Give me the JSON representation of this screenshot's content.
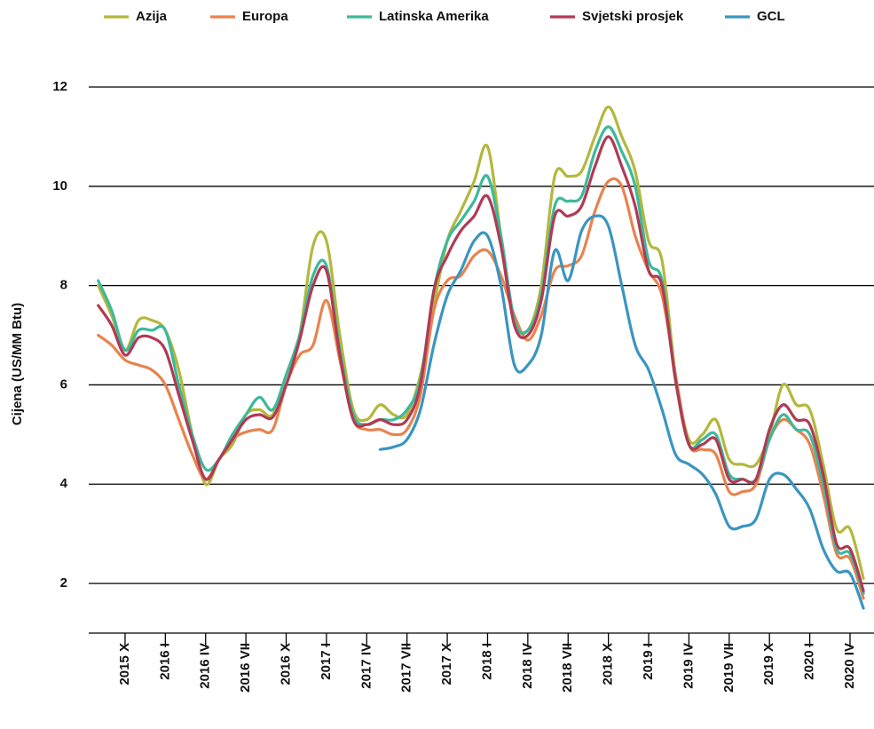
{
  "chart_data": {
    "type": "line",
    "y_label": "Cijena (US/MM Btu)",
    "categories": [
      null,
      null,
      "2015 X",
      null,
      null,
      "2016 I",
      null,
      null,
      "2016 IV",
      null,
      null,
      "2016 VII",
      null,
      null,
      "2016 X",
      null,
      null,
      "2017 I",
      null,
      null,
      "2017 IV",
      null,
      null,
      "2017 VII",
      null,
      null,
      "2017 X",
      null,
      null,
      "2018 I",
      null,
      null,
      "2018 IV",
      null,
      null,
      "2018 VII",
      null,
      null,
      "2018 X",
      null,
      null,
      "2019 I",
      null,
      null,
      "2019 IV",
      null,
      null,
      "2019 VII",
      null,
      null,
      "2019 X",
      null,
      null,
      "2020 I",
      null,
      null,
      "2020 IV",
      null
    ],
    "ylim": [
      1,
      12
    ],
    "yticks": [
      2,
      4,
      6,
      8,
      10,
      12
    ],
    "grid": true,
    "series": [
      {
        "name": "Azija",
        "color": "#b3b83c",
        "values": [
          8.0,
          7.4,
          6.7,
          7.3,
          7.3,
          7.1,
          6.3,
          5.0,
          4.0,
          4.5,
          4.8,
          5.4,
          5.5,
          5.4,
          6.2,
          7.0,
          8.8,
          8.9,
          7.0,
          5.5,
          5.3,
          5.6,
          5.4,
          5.4,
          6.2,
          7.6,
          8.9,
          9.5,
          10.1,
          10.8,
          9.0,
          7.3,
          7.1,
          8.0,
          10.2,
          10.2,
          10.3,
          11.0,
          11.6,
          11.0,
          10.3,
          8.9,
          8.5,
          6.2,
          4.9,
          5.0,
          5.3,
          4.5,
          4.4,
          4.4,
          5.0,
          6.0,
          5.6,
          5.5,
          4.4,
          3.1,
          3.1,
          2.1
        ]
      },
      {
        "name": "Europa",
        "color": "#e8834e",
        "values": [
          7.0,
          6.8,
          6.5,
          6.4,
          6.3,
          6.0,
          5.3,
          4.6,
          4.1,
          4.5,
          4.9,
          5.05,
          5.1,
          5.1,
          6.0,
          6.6,
          6.8,
          7.7,
          6.5,
          5.3,
          5.1,
          5.1,
          5.0,
          5.1,
          5.8,
          7.5,
          8.1,
          8.2,
          8.6,
          8.7,
          8.2,
          7.4,
          6.9,
          7.4,
          8.3,
          8.4,
          8.6,
          9.5,
          10.1,
          10.0,
          9.0,
          8.3,
          7.8,
          6.2,
          4.8,
          4.7,
          4.6,
          3.85,
          3.85,
          4.0,
          4.9,
          5.3,
          5.1,
          4.8,
          3.8,
          2.6,
          2.5,
          1.7
        ]
      },
      {
        "name": "Latinska Amerika",
        "color": "#3cb99b",
        "values": [
          8.1,
          7.5,
          6.7,
          7.1,
          7.1,
          7.1,
          6.0,
          5.0,
          4.3,
          4.5,
          5.0,
          5.4,
          5.75,
          5.5,
          6.2,
          7.0,
          8.2,
          8.4,
          6.7,
          5.4,
          5.2,
          5.3,
          5.3,
          5.5,
          6.1,
          7.9,
          8.9,
          9.3,
          9.7,
          10.2,
          9.0,
          7.3,
          7.1,
          7.8,
          9.6,
          9.7,
          9.8,
          10.7,
          11.2,
          10.7,
          10.0,
          8.5,
          8.1,
          6.1,
          4.8,
          4.9,
          5.0,
          4.2,
          4.1,
          4.1,
          4.9,
          5.4,
          5.1,
          5.0,
          4.0,
          2.7,
          2.6,
          1.8
        ]
      },
      {
        "name": "Svjetski prosjek",
        "color": "#b03a55",
        "values": [
          7.6,
          7.2,
          6.6,
          6.95,
          6.95,
          6.7,
          5.8,
          4.9,
          4.1,
          4.5,
          4.9,
          5.3,
          5.4,
          5.35,
          6.0,
          6.9,
          8.0,
          8.3,
          6.6,
          5.3,
          5.2,
          5.3,
          5.2,
          5.3,
          6.0,
          7.9,
          8.6,
          9.1,
          9.4,
          9.8,
          8.8,
          7.2,
          7.0,
          7.7,
          9.4,
          9.4,
          9.6,
          10.4,
          11.0,
          10.4,
          9.6,
          8.3,
          8.0,
          6.1,
          4.8,
          4.8,
          4.9,
          4.1,
          4.1,
          4.1,
          5.1,
          5.6,
          5.3,
          5.2,
          4.2,
          2.8,
          2.7,
          1.85
        ]
      },
      {
        "name": "GCL",
        "color": "#3a95c0",
        "values": [
          null,
          null,
          null,
          null,
          null,
          null,
          null,
          null,
          null,
          null,
          null,
          null,
          null,
          null,
          null,
          null,
          null,
          null,
          null,
          null,
          null,
          4.7,
          4.75,
          4.9,
          5.5,
          6.8,
          7.8,
          8.3,
          8.9,
          9.0,
          8.0,
          6.4,
          6.4,
          7.0,
          8.7,
          8.1,
          9.1,
          9.4,
          9.2,
          8.0,
          6.8,
          6.3,
          5.5,
          4.6,
          4.4,
          4.2,
          3.8,
          3.15,
          3.15,
          3.3,
          4.1,
          4.2,
          3.9,
          3.5,
          2.7,
          2.25,
          2.2,
          1.5
        ]
      }
    ]
  }
}
